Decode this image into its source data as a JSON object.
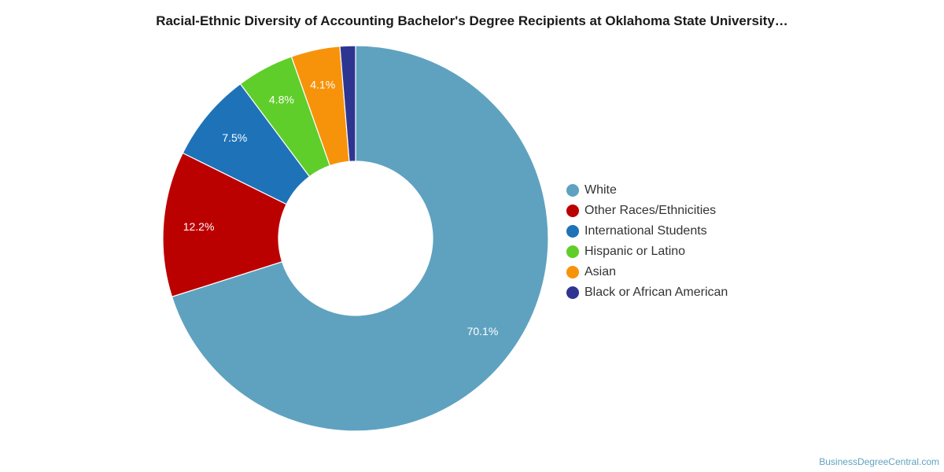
{
  "chart_data": {
    "type": "pie",
    "title": "Racial-Ethnic Diversity of Accounting Bachelor's Degree Recipients at Oklahoma State University…",
    "donut": true,
    "legend_position": "right",
    "series": [
      {
        "name": "White",
        "value": 70.1,
        "label": "70.1%",
        "color": "#5fa2c0"
      },
      {
        "name": "Other Races/Ethnicities",
        "value": 12.2,
        "label": "12.2%",
        "color": "#bb0000"
      },
      {
        "name": "International Students",
        "value": 7.5,
        "label": "7.5%",
        "color": "#1e72b8"
      },
      {
        "name": "Hispanic or Latino",
        "value": 4.8,
        "label": "4.8%",
        "color": "#5fce2a"
      },
      {
        "name": "Asian",
        "value": 4.1,
        "label": "4.1%",
        "color": "#f7930a"
      },
      {
        "name": "Black or African American",
        "value": 1.3,
        "label": "",
        "color": "#2e3591"
      }
    ]
  },
  "watermark": "BusinessDegreeCentral.com"
}
